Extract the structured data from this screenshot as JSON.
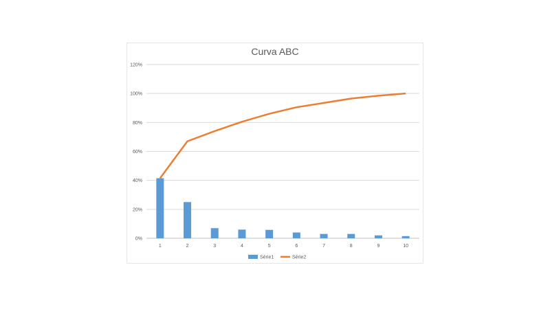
{
  "chart_data": {
    "type": "bar+line",
    "title": "Curva ABC",
    "categories": [
      "1",
      "2",
      "3",
      "4",
      "5",
      "6",
      "7",
      "8",
      "9",
      "10"
    ],
    "y_ticks": [
      "0%",
      "20%",
      "40%",
      "60%",
      "80%",
      "100%",
      "120%"
    ],
    "ylim": [
      0,
      120
    ],
    "grid": true,
    "legend_position": "bottom",
    "series": [
      {
        "name": "Série1",
        "type": "bar",
        "color": "#5b9bd5",
        "values": [
          41.5,
          25,
          7,
          6,
          5.8,
          4,
          3,
          3,
          2,
          1.5
        ]
      },
      {
        "name": "Série2",
        "type": "line",
        "color": "#ed7d31",
        "values": [
          41.5,
          67,
          74,
          80.5,
          86,
          90.5,
          93.5,
          96.5,
          98.5,
          100
        ]
      }
    ]
  }
}
